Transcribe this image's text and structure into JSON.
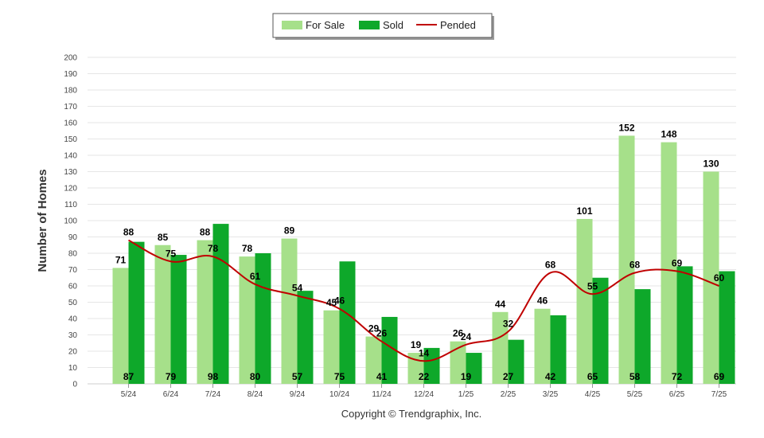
{
  "chart_data": {
    "type": "bar",
    "categories": [
      "5/24",
      "6/24",
      "7/24",
      "8/24",
      "9/24",
      "10/24",
      "11/24",
      "12/24",
      "1/25",
      "2/25",
      "3/25",
      "4/25",
      "5/25",
      "6/25",
      "7/25"
    ],
    "series": [
      {
        "name": "For Sale",
        "type": "bar",
        "color": "#a6e08a",
        "values": [
          71,
          85,
          88,
          78,
          89,
          45,
          29,
          19,
          26,
          44,
          46,
          101,
          152,
          148,
          130
        ]
      },
      {
        "name": "Sold",
        "type": "bar",
        "color": "#0ea82a",
        "values": [
          87,
          79,
          98,
          80,
          57,
          75,
          41,
          22,
          19,
          27,
          42,
          65,
          58,
          72,
          69
        ]
      },
      {
        "name": "Pended",
        "type": "line",
        "color": "#c00000",
        "values": [
          88,
          75,
          78,
          61,
          54,
          46,
          26,
          14,
          24,
          32,
          68,
          55,
          68,
          69,
          60
        ]
      }
    ],
    "ylabel": "Number of Homes",
    "xlabel": "",
    "ylim": [
      0,
      200
    ],
    "y_ticks": [
      0,
      10,
      20,
      30,
      40,
      50,
      60,
      70,
      80,
      90,
      100,
      110,
      120,
      130,
      140,
      150,
      160,
      170,
      180,
      190,
      200
    ],
    "grid": true,
    "legend_position": "top-center"
  },
  "footer": {
    "copyright": "Copyright © Trendgraphix, Inc."
  }
}
